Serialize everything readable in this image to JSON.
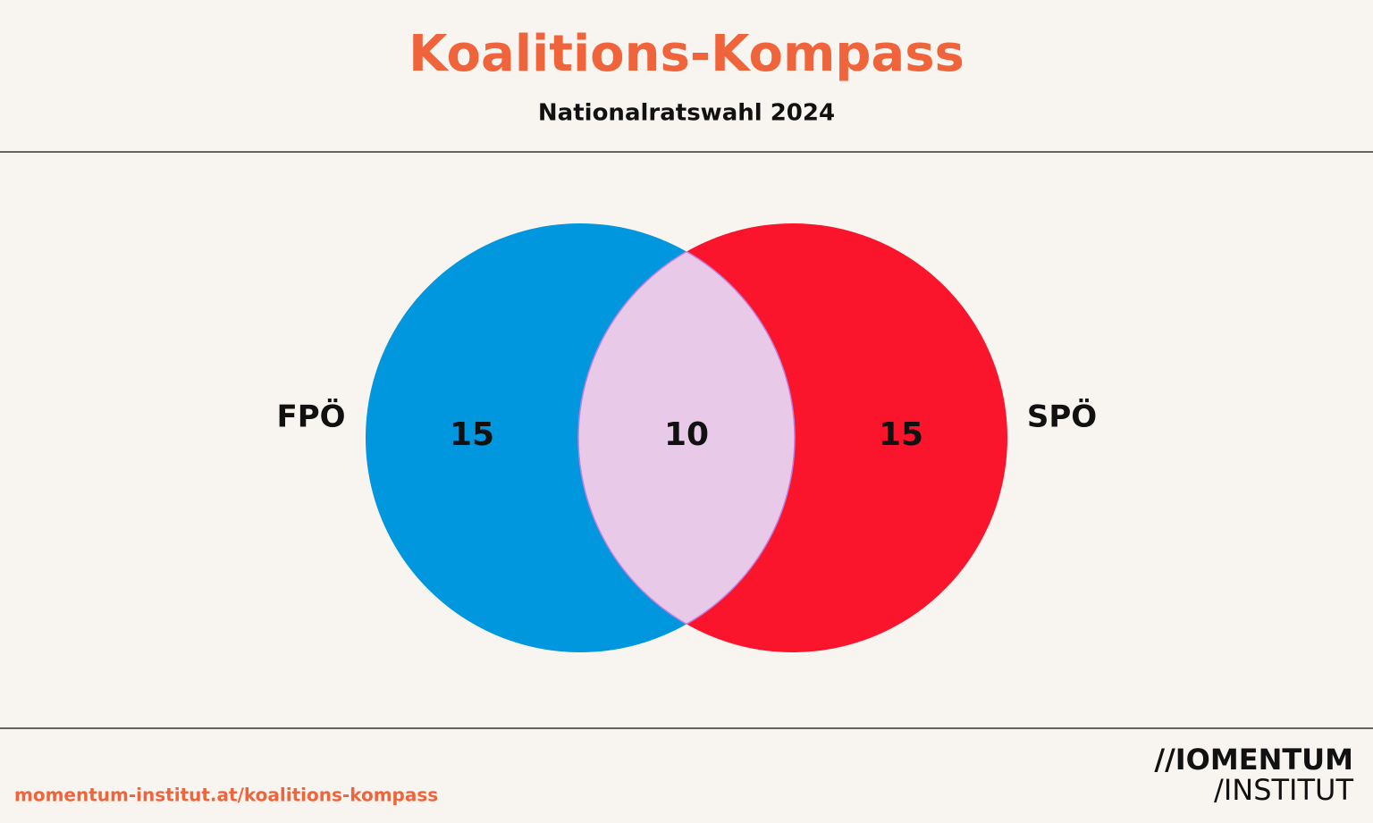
{
  "chart_data": {
    "type": "venn",
    "title": "Koalitions-Kompass",
    "subtitle": "Nationalratswahl 2024",
    "sets": [
      {
        "name": "FPÖ",
        "color": "#0097df"
      },
      {
        "name": "SPÖ",
        "color": "#fa142c"
      }
    ],
    "values": [
      15,
      10,
      15
    ],
    "intersection_color": "#e8c9e8",
    "footer": {
      "url": "momentum-institut.at/koalitions-kompass",
      "logo_line1": "//IOMENTUM",
      "logo_line2": "/INSTITUT"
    }
  }
}
